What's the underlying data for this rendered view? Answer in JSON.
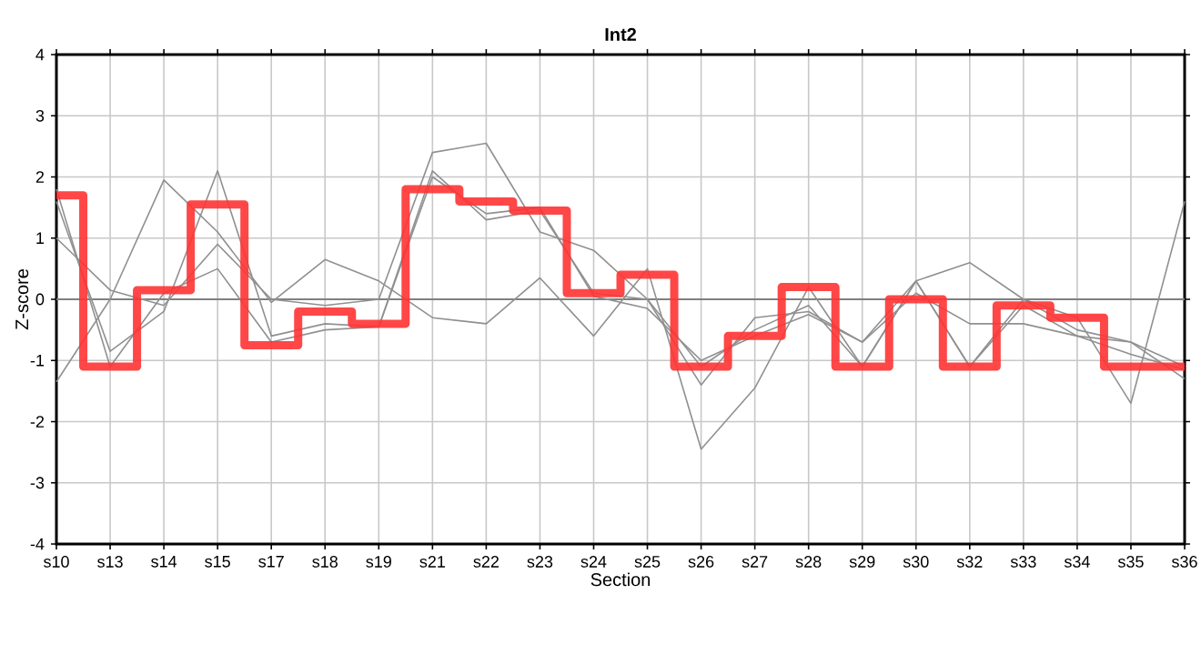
{
  "chart_data": {
    "type": "line",
    "title": "Int2",
    "xlabel": "Section",
    "ylabel": "Z-score",
    "categories": [
      "s10",
      "s13",
      "s14",
      "s15",
      "s17",
      "s18",
      "s19",
      "s21",
      "s22",
      "s23",
      "s24",
      "s25",
      "s26",
      "s27",
      "s28",
      "s29",
      "s30",
      "s32",
      "s33",
      "s34",
      "s35",
      "s36"
    ],
    "series": [
      {
        "color": "#909090",
        "values": [
          1.0,
          0.15,
          -0.1,
          0.9,
          0.0,
          -0.1,
          0.0,
          2.4,
          2.55,
          1.1,
          0.8,
          0.0,
          -1.4,
          -0.3,
          -0.2,
          -0.7,
          0.3,
          0.6,
          0.0,
          -0.5,
          -0.7,
          -1.3
        ]
      },
      {
        "color": "#909090",
        "values": [
          -1.35,
          0.0,
          1.95,
          1.1,
          -0.05,
          0.65,
          0.3,
          -0.3,
          -0.4,
          0.35,
          -0.6,
          0.5,
          -2.45,
          -1.45,
          0.2,
          -1.1,
          0.3,
          -1.1,
          0.0,
          -0.3,
          -1.7,
          1.6
        ]
      },
      {
        "color": "#909090",
        "values": [
          1.6,
          -0.85,
          -0.2,
          2.1,
          -0.6,
          -0.4,
          -0.45,
          2.1,
          1.3,
          1.45,
          0.1,
          0.0,
          -1.1,
          -0.5,
          -0.1,
          -1.1,
          0.3,
          -1.1,
          -0.1,
          -0.6,
          -0.7,
          -1.1
        ]
      },
      {
        "color": "#909090",
        "values": [
          1.8,
          -1.1,
          0.1,
          0.5,
          -0.7,
          -0.5,
          -0.45,
          2.0,
          1.4,
          1.5,
          0.05,
          -0.15,
          -1.0,
          -0.6,
          -0.25,
          -0.7,
          0.1,
          -0.4,
          -0.4,
          -0.6,
          -0.9,
          -1.15
        ]
      },
      {
        "type": "step",
        "color": "#ff3333",
        "values": [
          1.7,
          -1.1,
          0.15,
          1.55,
          -0.75,
          -0.2,
          -0.4,
          1.8,
          1.6,
          1.45,
          0.1,
          0.4,
          -1.1,
          -0.6,
          0.2,
          -1.1,
          0.0,
          -1.1,
          -0.1,
          -0.3,
          -1.1,
          -1.1
        ]
      }
    ],
    "ylim": [
      -4,
      4
    ],
    "yticks": [
      -4,
      -3,
      -2,
      -1,
      0,
      1,
      2,
      3,
      4
    ],
    "grid": true,
    "ref_lines": [
      {
        "axis": "y",
        "value": 0,
        "color": "#808080"
      }
    ]
  }
}
